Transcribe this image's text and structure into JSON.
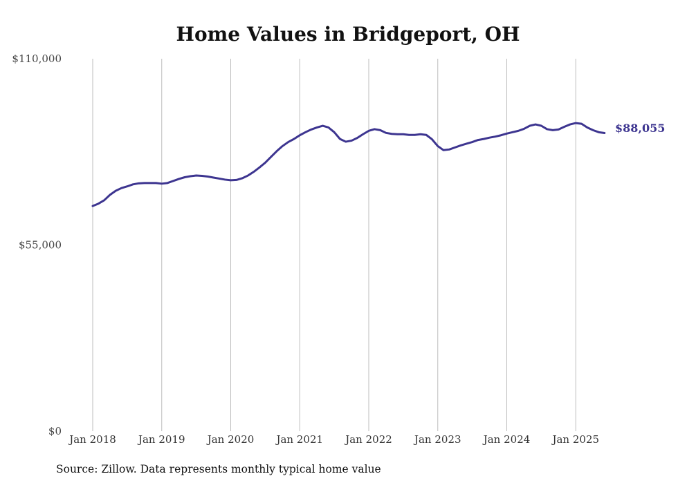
{
  "chart_data": {
    "type": "line",
    "title": "Home Values in Bridgeport, OH",
    "source": "Source: Zillow. Data represents monthly typical home value",
    "xlabel": "",
    "ylabel": "",
    "ylim": [
      0,
      110000
    ],
    "y_ticks": [
      0,
      55000,
      110000
    ],
    "y_tick_labels": [
      "$0",
      "$55,000",
      "$110,000"
    ],
    "x_ticks": [
      "2018-01",
      "2019-01",
      "2020-01",
      "2021-01",
      "2022-01",
      "2023-01",
      "2024-01",
      "2025-01"
    ],
    "x_tick_labels": [
      "Jan 2018",
      "Jan 2019",
      "Jan 2020",
      "Jan 2021",
      "Jan 2022",
      "Jan 2023",
      "Jan 2024",
      "Jan 2025"
    ],
    "x_range": [
      "2018-01",
      "2025-06"
    ],
    "grid": "vertical",
    "legend": "none",
    "line_color": "#3d3590",
    "end_label": "$88,055",
    "series": [
      {
        "x": [
          "2018-01",
          "2018-02",
          "2018-03",
          "2018-04",
          "2018-05",
          "2018-06",
          "2018-07",
          "2018-08",
          "2018-09",
          "2018-10",
          "2018-11",
          "2018-12",
          "2019-01",
          "2019-02",
          "2019-03",
          "2019-04",
          "2019-05",
          "2019-06",
          "2019-07",
          "2019-08",
          "2019-09",
          "2019-10",
          "2019-11",
          "2019-12",
          "2020-01",
          "2020-02",
          "2020-03",
          "2020-04",
          "2020-05",
          "2020-06",
          "2020-07",
          "2020-08",
          "2020-09",
          "2020-10",
          "2020-11",
          "2020-12",
          "2021-01",
          "2021-02",
          "2021-03",
          "2021-04",
          "2021-05",
          "2021-06",
          "2021-07",
          "2021-08",
          "2021-09",
          "2021-10",
          "2021-11",
          "2021-12",
          "2022-01",
          "2022-02",
          "2022-03",
          "2022-04",
          "2022-05",
          "2022-06",
          "2022-07",
          "2022-08",
          "2022-09",
          "2022-10",
          "2022-11",
          "2022-12",
          "2023-01",
          "2023-02",
          "2023-03",
          "2023-04",
          "2023-05",
          "2023-06",
          "2023-07",
          "2023-08",
          "2023-09",
          "2023-10",
          "2023-11",
          "2023-12",
          "2024-01",
          "2024-02",
          "2024-03",
          "2024-04",
          "2024-05",
          "2024-06",
          "2024-07",
          "2024-08",
          "2024-09",
          "2024-10",
          "2024-11",
          "2024-12",
          "2025-01",
          "2025-02",
          "2025-03",
          "2025-04",
          "2025-05",
          "2025-06"
        ],
        "values": [
          66500,
          67200,
          68200,
          69800,
          71000,
          71800,
          72300,
          72900,
          73200,
          73300,
          73300,
          73300,
          73100,
          73300,
          73900,
          74500,
          75000,
          75300,
          75500,
          75400,
          75200,
          74900,
          74600,
          74300,
          74100,
          74200,
          74700,
          75500,
          76600,
          77900,
          79300,
          81000,
          82700,
          84200,
          85400,
          86300,
          87400,
          88300,
          89100,
          89700,
          90200,
          89700,
          88300,
          86300,
          85500,
          85800,
          86600,
          87700,
          88700,
          89200,
          88900,
          88100,
          87800,
          87700,
          87700,
          87500,
          87500,
          87700,
          87500,
          86200,
          84200,
          83000,
          83200,
          83800,
          84400,
          84900,
          85400,
          86000,
          86300,
          86700,
          87000,
          87400,
          87900,
          88300,
          88700,
          89300,
          90200,
          90600,
          90200,
          89200,
          88900,
          89100,
          89900,
          90600,
          91000,
          90800,
          89700,
          88900,
          88300,
          88055
        ]
      }
    ]
  }
}
